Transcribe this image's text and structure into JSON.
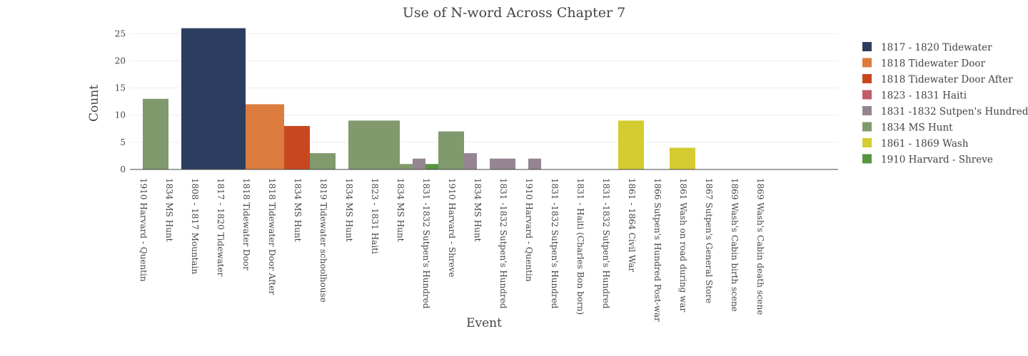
{
  "chart_data": {
    "type": "bar",
    "title": "Use of N-word Across Chapter 7",
    "xlabel": "Event",
    "ylabel": "Count",
    "ylim": [
      0,
      27
    ],
    "yticks": [
      0,
      5,
      10,
      15,
      20,
      25
    ],
    "grid": true,
    "legend_position": "right",
    "x_tick_labels": [
      "1910 Harvard - Quentin",
      "1834 MS Hunt",
      "1808 - 1817 Mountain",
      "1817 - 1820 Tidewater",
      "1818 Tidewater Door",
      "1818 Tidewater Door After",
      "1834 MS Hunt",
      "1819 Tidewater schoolhouse",
      "1834 MS Hunt",
      "1823 - 1831 Haiti",
      "1834 MS Hunt",
      "1831 -1832 Sutpen's Hundred",
      "1910 Harvard - Shreve",
      "1834 MS Hunt",
      "1831 -1832 Sutpen's Hundred",
      "1910 Harvard - Quentin",
      "1831 -1832 Sutpen's Hundred",
      "1831 - Haiti (Charles Bon born)",
      "1831 -1832 Sutpen's Hundred",
      "1861 - 1864 Civil War",
      "1866 Sutpen's Hundred Post-war",
      "1861 Wash on road during war",
      "1867 Sutpen's General Store",
      "1869 Wash's Cabin birth scene",
      "1869 Wash's Cabin death scene"
    ],
    "series": [
      {
        "name": "1817 - 1820 Tidewater",
        "color": "#2c3e5f",
        "bars": [
          {
            "x_start": 4,
            "x_end": 9,
            "value": 26
          }
        ]
      },
      {
        "name": "1818 Tidewater Door",
        "color": "#db7b3d",
        "bars": [
          {
            "x_start": 9,
            "x_end": 12,
            "value": 12
          }
        ]
      },
      {
        "name": "1818 Tidewater Door After",
        "color": "#c9471e",
        "bars": [
          {
            "x_start": 12,
            "x_end": 14,
            "value": 8
          }
        ]
      },
      {
        "name": "1823 - 1831 Haiti",
        "color": "#c05c65",
        "bars": [
          {
            "x_start": 18,
            "x_end": 21,
            "value": 1
          }
        ]
      },
      {
        "name": "1831 -1832 Sutpen's Hundred",
        "color": "#958593",
        "bars": [
          {
            "x_start": 22,
            "x_end": 23,
            "value": 2
          },
          {
            "x_start": 25,
            "x_end": 27,
            "value": 3
          },
          {
            "x_start": 28,
            "x_end": 30,
            "value": 2
          },
          {
            "x_start": 31,
            "x_end": 32,
            "value": 2
          }
        ]
      },
      {
        "name": "1834 MS Hunt",
        "color": "#80996d",
        "bars": [
          {
            "x_start": 1,
            "x_end": 3,
            "value": 13
          },
          {
            "x_start": 14,
            "x_end": 16,
            "value": 3
          },
          {
            "x_start": 17,
            "x_end": 21,
            "value": 9
          },
          {
            "x_start": 21,
            "x_end": 22,
            "value": 1
          },
          {
            "x_start": 24,
            "x_end": 26,
            "value": 7
          }
        ]
      },
      {
        "name": "1861 - 1869 Wash",
        "color": "#d4cc30",
        "bars": [
          {
            "x_start": 38,
            "x_end": 40,
            "value": 9
          },
          {
            "x_start": 42,
            "x_end": 44,
            "value": 4
          }
        ]
      },
      {
        "name": "1910 Harvard - Shreve",
        "color": "#569440",
        "bars": [
          {
            "x_start": 23,
            "x_end": 24,
            "value": 1
          }
        ]
      }
    ]
  }
}
